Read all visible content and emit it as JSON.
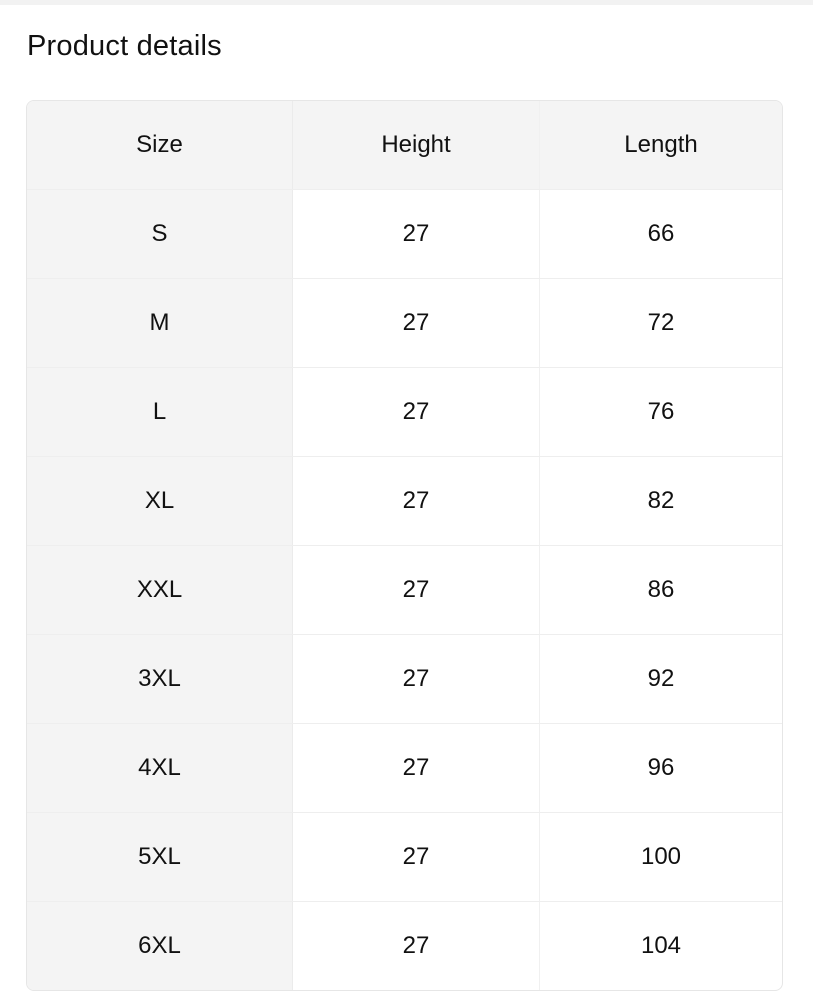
{
  "title": "Product details",
  "headers": [
    "Size",
    "Height",
    "Length"
  ],
  "rows": [
    [
      "S",
      "27",
      "66"
    ],
    [
      "M",
      "27",
      "72"
    ],
    [
      "L",
      "27",
      "76"
    ],
    [
      "XL",
      "27",
      "82"
    ],
    [
      "XXL",
      "27",
      "86"
    ],
    [
      "3XL",
      "27",
      "92"
    ],
    [
      "4XL",
      "27",
      "96"
    ],
    [
      "5XL",
      "27",
      "100"
    ],
    [
      "6XL",
      "27",
      "104"
    ]
  ]
}
